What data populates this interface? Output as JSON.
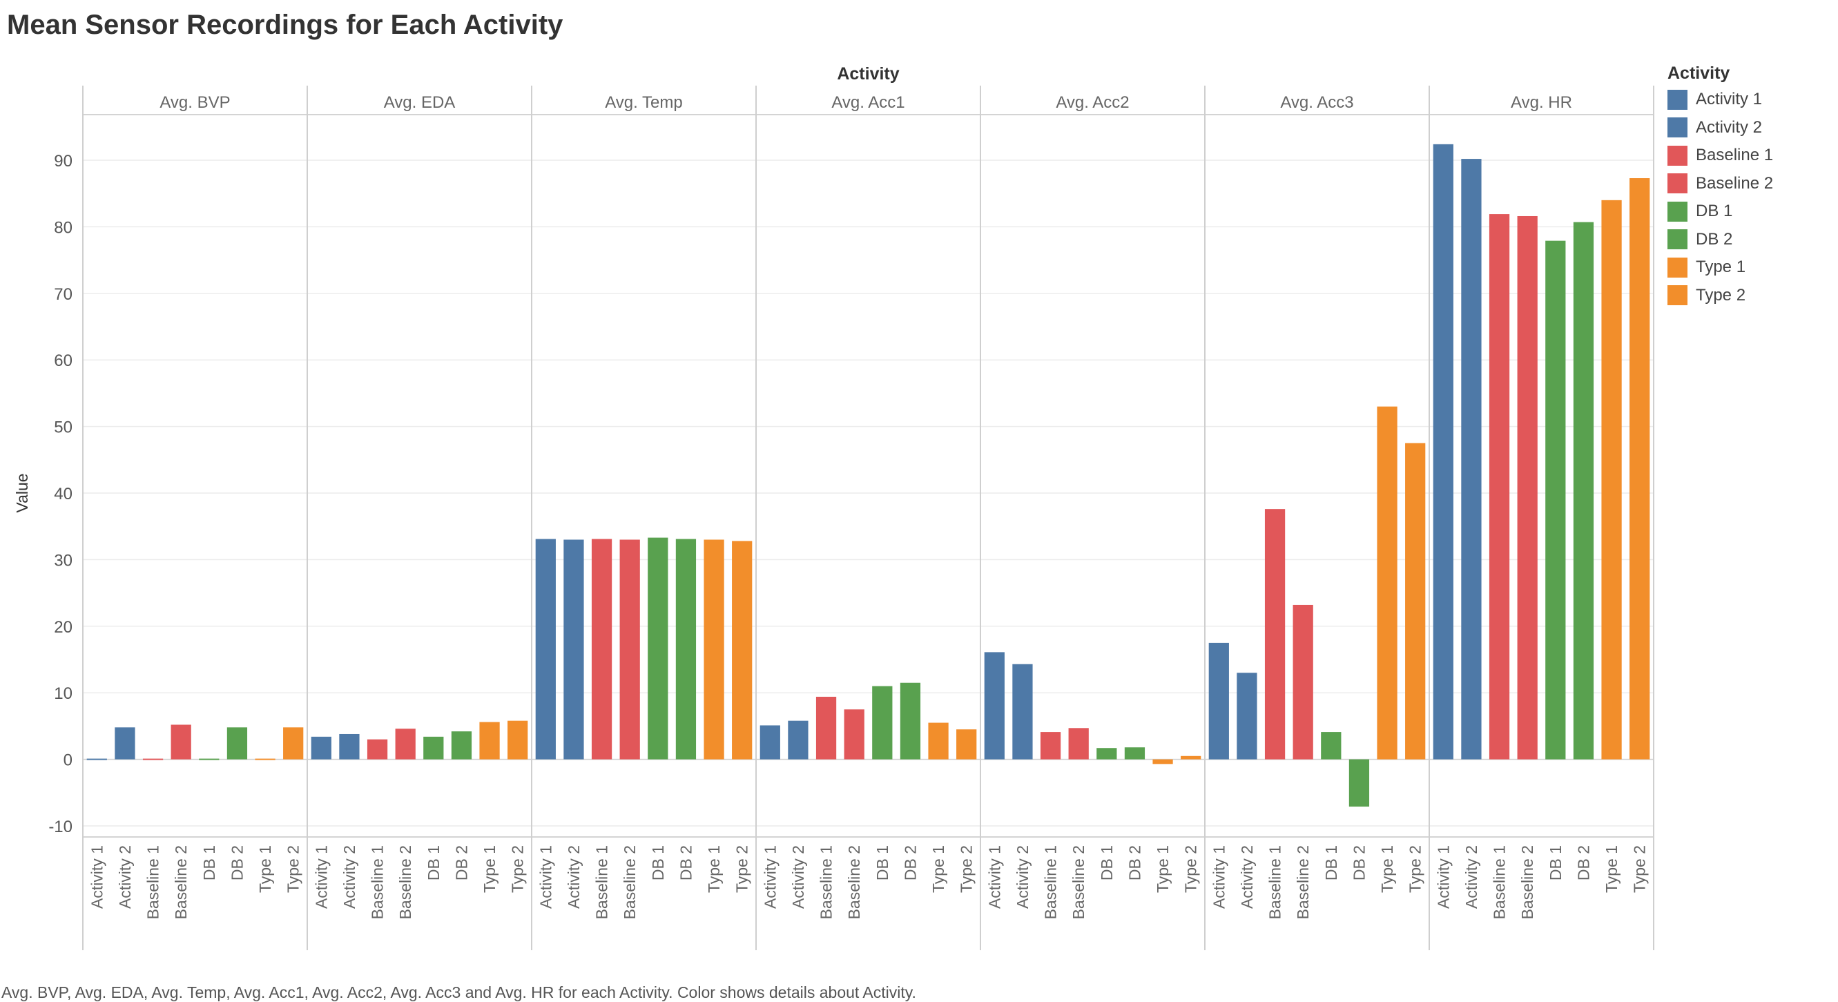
{
  "chart_data": {
    "type": "bar",
    "title": "Mean Sensor Recordings for Each Activity",
    "column_header": "Activity",
    "ylabel": "Value",
    "ylim": [
      -12,
      100
    ],
    "yticks": [
      -10,
      0,
      10,
      20,
      30,
      40,
      50,
      60,
      70,
      80,
      90
    ],
    "grid": true,
    "legend_placement": "right",
    "panels": [
      "Avg. BVP",
      "Avg. EDA",
      "Avg. Temp",
      "Avg. Acc1",
      "Avg. Acc2",
      "Avg. Acc3",
      "Avg. HR"
    ],
    "categories": [
      "Activity 1",
      "Activity 2",
      "Baseline 1",
      "Baseline 2",
      "DB 1",
      "DB 2",
      "Type 1",
      "Type 2"
    ],
    "colors": [
      "#4e79a7",
      "#4e79a7",
      "#e15759",
      "#e15759",
      "#59a14f",
      "#59a14f",
      "#f28e2b",
      "#f28e2b"
    ],
    "series": [
      {
        "name": "Avg. BVP",
        "values": [
          -0.2,
          4.8,
          -0.2,
          5.2,
          -0.2,
          4.8,
          0.2,
          4.8
        ]
      },
      {
        "name": "Avg. EDA",
        "values": [
          3.4,
          3.8,
          3.0,
          4.6,
          3.4,
          4.2,
          5.6,
          5.8
        ]
      },
      {
        "name": "Avg. Temp",
        "values": [
          33.1,
          33.0,
          33.1,
          33.0,
          33.3,
          33.1,
          33.0,
          32.8
        ]
      },
      {
        "name": "Avg. Acc1",
        "values": [
          5.1,
          5.8,
          9.4,
          7.5,
          11.0,
          11.5,
          5.5,
          4.5
        ]
      },
      {
        "name": "Avg. Acc2",
        "values": [
          16.1,
          14.3,
          4.1,
          4.7,
          1.7,
          1.8,
          -0.7,
          0.5
        ]
      },
      {
        "name": "Avg. Acc3",
        "values": [
          17.5,
          13.0,
          37.6,
          23.2,
          4.1,
          -7.1,
          53.0,
          47.5
        ]
      },
      {
        "name": "Avg. HR",
        "values": [
          92.4,
          90.2,
          81.9,
          81.6,
          77.9,
          80.7,
          84.0,
          87.3
        ]
      }
    ]
  },
  "legend": {
    "title": "Activity",
    "items": [
      {
        "label": "Activity 1",
        "color": "#4e79a7"
      },
      {
        "label": "Activity 2",
        "color": "#4e79a7"
      },
      {
        "label": "Baseline 1",
        "color": "#e15759"
      },
      {
        "label": "Baseline 2",
        "color": "#e15759"
      },
      {
        "label": "DB 1",
        "color": "#59a14f"
      },
      {
        "label": "DB 2",
        "color": "#59a14f"
      },
      {
        "label": "Type 1",
        "color": "#f28e2b"
      },
      {
        "label": "Type 2",
        "color": "#f28e2b"
      }
    ]
  },
  "caption": "Avg. BVP, Avg. EDA, Avg. Temp, Avg. Acc1, Avg. Acc2, Avg. Acc3 and Avg. HR for each Activity.  Color shows details about Activity."
}
